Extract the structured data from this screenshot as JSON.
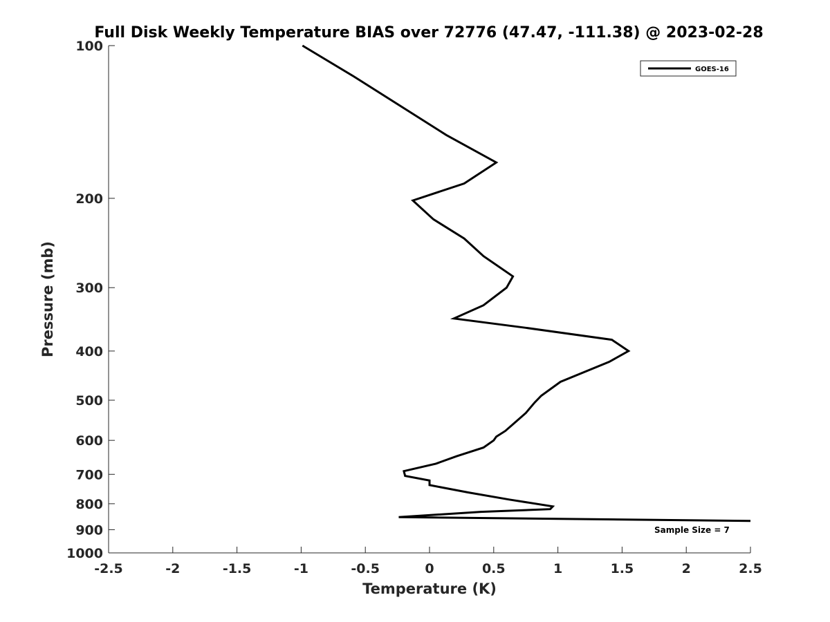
{
  "chart_data": {
    "type": "line",
    "title": "Full Disk Weekly Temperature BIAS over 72776 (47.47, -111.38) @ 2023-02-28",
    "xlabel": "Temperature (K)",
    "ylabel": "Pressure (mb)",
    "xlim": [
      -2.5,
      2.5
    ],
    "ylim": [
      100,
      1000
    ],
    "y_scale": "log",
    "y_reversed": true,
    "x_ticks": [
      "-2.5",
      "-2",
      "-1.5",
      "-1",
      "-0.5",
      "0",
      "0.5",
      "1",
      "1.5",
      "2",
      "2.5"
    ],
    "y_ticks": [
      "100",
      "200",
      "300",
      "400",
      "500",
      "600",
      "700",
      "800",
      "900",
      "1000"
    ],
    "grid": false,
    "legend_position": "top-right",
    "series": [
      {
        "name": "GOES-16",
        "color": "#000000",
        "points": [
          {
            "x": -0.99,
            "y": 100
          },
          {
            "x": -0.59,
            "y": 115
          },
          {
            "x": 0.13,
            "y": 150
          },
          {
            "x": 0.52,
            "y": 170
          },
          {
            "x": 0.27,
            "y": 187
          },
          {
            "x": -0.13,
            "y": 202
          },
          {
            "x": 0.03,
            "y": 220
          },
          {
            "x": 0.27,
            "y": 240
          },
          {
            "x": 0.42,
            "y": 260
          },
          {
            "x": 0.65,
            "y": 285
          },
          {
            "x": 0.6,
            "y": 300
          },
          {
            "x": 0.42,
            "y": 325
          },
          {
            "x": 0.19,
            "y": 345
          },
          {
            "x": 0.75,
            "y": 360
          },
          {
            "x": 1.42,
            "y": 380
          },
          {
            "x": 1.55,
            "y": 400
          },
          {
            "x": 1.4,
            "y": 420
          },
          {
            "x": 1.02,
            "y": 460
          },
          {
            "x": 0.87,
            "y": 490
          },
          {
            "x": 0.82,
            "y": 505
          },
          {
            "x": 0.75,
            "y": 530
          },
          {
            "x": 0.66,
            "y": 555
          },
          {
            "x": 0.59,
            "y": 575
          },
          {
            "x": 0.52,
            "y": 590
          },
          {
            "x": 0.5,
            "y": 600
          },
          {
            "x": 0.42,
            "y": 620
          },
          {
            "x": 0.21,
            "y": 645
          },
          {
            "x": 0.05,
            "y": 667
          },
          {
            "x": -0.2,
            "y": 690
          },
          {
            "x": -0.19,
            "y": 705
          },
          {
            "x": 0.0,
            "y": 720
          },
          {
            "x": 0.0,
            "y": 735
          },
          {
            "x": 0.3,
            "y": 760
          },
          {
            "x": 0.62,
            "y": 785
          },
          {
            "x": 0.96,
            "y": 810
          },
          {
            "x": 0.94,
            "y": 820
          },
          {
            "x": 0.4,
            "y": 830
          },
          {
            "x": -0.24,
            "y": 850
          },
          {
            "x": 2.5,
            "y": 865
          }
        ]
      }
    ],
    "annotations": [
      {
        "text": "Sample Size = 7",
        "x": 2.05,
        "y": 900
      }
    ]
  }
}
